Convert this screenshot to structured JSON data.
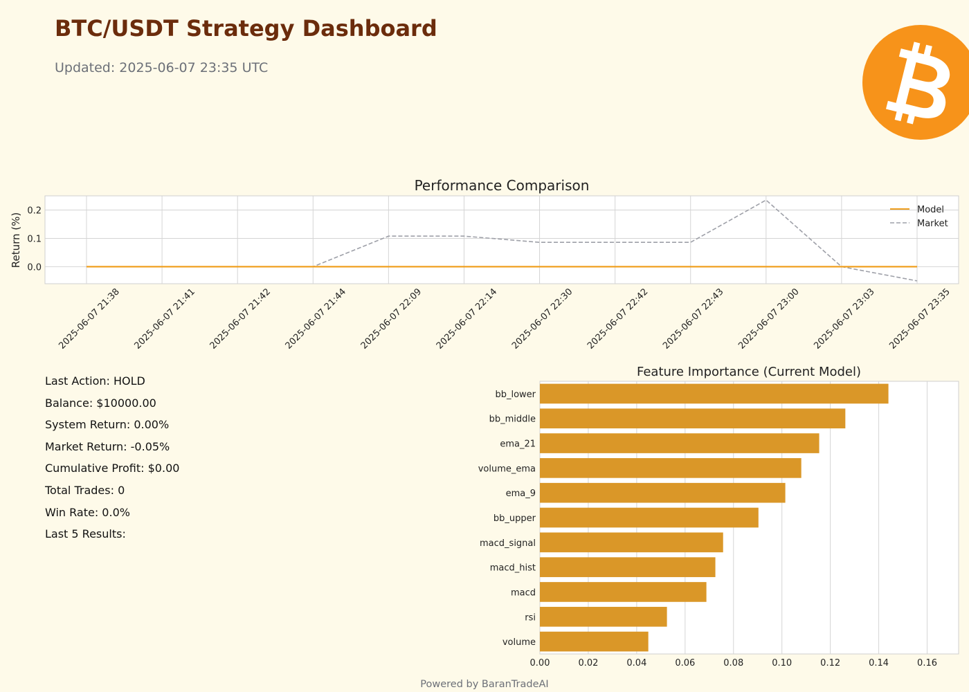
{
  "header": {
    "title": "BTC/USDT Strategy Dashboard",
    "updated": "Updated: 2025-06-07 23:35 UTC"
  },
  "logo": {
    "icon": "bitcoin-logo-icon",
    "color": "#f7931a"
  },
  "stats": [
    "Last Action: HOLD",
    "Balance: $10000.00",
    "System Return: 0.00%",
    "Market Return: -0.05%",
    "Cumulative Profit: $0.00",
    "Total Trades: 0",
    "Win Rate: 0.0%",
    "Last 5 Results:"
  ],
  "footer": "Powered by BaranTradeAI",
  "chart_data": [
    {
      "type": "line",
      "title": "Performance Comparison",
      "xlabel": "",
      "ylabel": "Return (%)",
      "x": [
        "2025-06-07 21:38",
        "2025-06-07 21:41",
        "2025-06-07 21:42",
        "2025-06-07 21:44",
        "2025-06-07 22:09",
        "2025-06-07 22:14",
        "2025-06-07 22:30",
        "2025-06-07 22:42",
        "2025-06-07 22:43",
        "2025-06-07 23:00",
        "2025-06-07 23:03",
        "2025-06-07 23:35"
      ],
      "series": [
        {
          "name": "Model",
          "values": [
            0,
            0,
            0,
            0,
            0,
            0,
            0,
            0,
            0,
            0,
            0,
            0
          ],
          "color": "#f0a020",
          "style": "solid"
        },
        {
          "name": "Market",
          "values": [
            0,
            0,
            0,
            0,
            0.108,
            0.108,
            0.086,
            0.086,
            0.086,
            0.235,
            0,
            -0.05
          ],
          "color": "#9ea0a8",
          "style": "dashed"
        }
      ],
      "yticks": [
        "0.0",
        "0.1",
        "0.2"
      ],
      "ylim": [
        -0.06,
        0.25
      ],
      "grid": true,
      "legend": "top-right"
    },
    {
      "type": "bar",
      "orientation": "horizontal",
      "title": "Feature Importance (Current Model)",
      "categories": [
        "bb_lower",
        "bb_middle",
        "ema_21",
        "volume_ema",
        "ema_9",
        "bb_upper",
        "macd_signal",
        "macd_hist",
        "macd",
        "rsi",
        "volume"
      ],
      "values": [
        0.144,
        0.1262,
        0.1154,
        0.108,
        0.1014,
        0.0903,
        0.0757,
        0.0725,
        0.0688,
        0.0525,
        0.0448
      ],
      "color": "#da9728",
      "xticks": [
        "0.00",
        "0.02",
        "0.04",
        "0.06",
        "0.08",
        "0.10",
        "0.12",
        "0.14",
        "0.16"
      ],
      "xlim": [
        0,
        0.173
      ],
      "grid": true
    }
  ]
}
